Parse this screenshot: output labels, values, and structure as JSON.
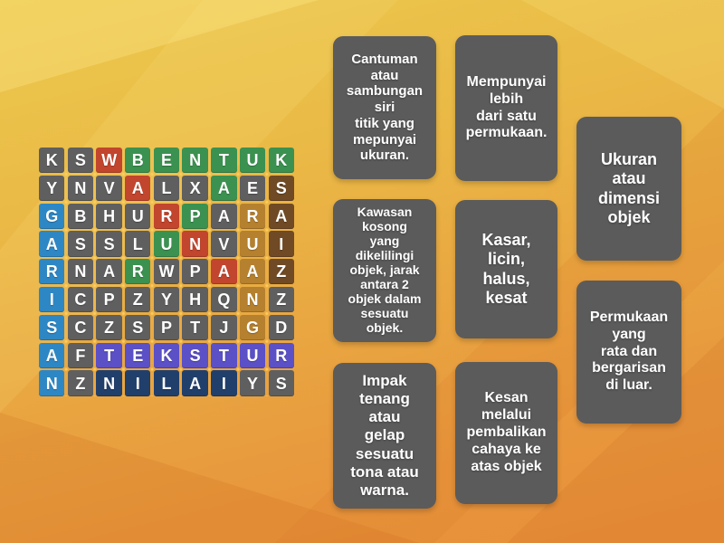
{
  "page": {
    "background": {
      "top_color": "#ecc94e",
      "bottom_color": "#e78e39"
    },
    "card_color": "#5b5b5b",
    "text_color": "#ffffff"
  },
  "grid": {
    "rows_count": 9,
    "cols_count": 9,
    "palette": {
      "gray": "#5f5f5f",
      "green": "#3b9150",
      "red": "#c2452d",
      "blue": "#2d87c5",
      "tan": "#b5812f",
      "brown": "#6f4a24",
      "purple": "#5b50c6",
      "navy": "#213f6b"
    },
    "rows": [
      {
        "letters": [
          "K",
          "S",
          "W",
          "B",
          "E",
          "N",
          "T",
          "U",
          "K"
        ],
        "colors": [
          "gray",
          "gray",
          "red",
          "green",
          "green",
          "green",
          "green",
          "green",
          "green"
        ]
      },
      {
        "letters": [
          "Y",
          "N",
          "V",
          "A",
          "L",
          "X",
          "A",
          "E",
          "S"
        ],
        "colors": [
          "gray",
          "gray",
          "gray",
          "red",
          "gray",
          "gray",
          "green",
          "gray",
          "brown"
        ]
      },
      {
        "letters": [
          "G",
          "B",
          "H",
          "U",
          "R",
          "P",
          "A",
          "R",
          "A"
        ],
        "colors": [
          "blue",
          "gray",
          "gray",
          "gray",
          "red",
          "green",
          "gray",
          "tan",
          "brown"
        ]
      },
      {
        "letters": [
          "A",
          "S",
          "S",
          "L",
          "U",
          "N",
          "V",
          "U",
          "I"
        ],
        "colors": [
          "blue",
          "gray",
          "gray",
          "gray",
          "green",
          "red",
          "gray",
          "tan",
          "brown"
        ]
      },
      {
        "letters": [
          "R",
          "N",
          "A",
          "R",
          "W",
          "P",
          "A",
          "A",
          "Z"
        ],
        "colors": [
          "blue",
          "gray",
          "gray",
          "green",
          "gray",
          "gray",
          "red",
          "tan",
          "brown"
        ]
      },
      {
        "letters": [
          "I",
          "C",
          "P",
          "Z",
          "Y",
          "H",
          "Q",
          "N",
          "Z"
        ],
        "colors": [
          "blue",
          "gray",
          "gray",
          "gray",
          "gray",
          "gray",
          "gray",
          "tan",
          "gray"
        ]
      },
      {
        "letters": [
          "S",
          "C",
          "Z",
          "S",
          "P",
          "T",
          "J",
          "G",
          "D"
        ],
        "colors": [
          "blue",
          "gray",
          "gray",
          "gray",
          "gray",
          "gray",
          "gray",
          "tan",
          "gray"
        ]
      },
      {
        "letters": [
          "A",
          "F",
          "T",
          "E",
          "K",
          "S",
          "T",
          "U",
          "R"
        ],
        "colors": [
          "blue",
          "gray",
          "purple",
          "purple",
          "purple",
          "purple",
          "purple",
          "purple",
          "purple"
        ]
      },
      {
        "letters": [
          "N",
          "Z",
          "N",
          "I",
          "L",
          "A",
          "I",
          "Y",
          "S"
        ],
        "colors": [
          "blue",
          "gray",
          "navy",
          "navy",
          "navy",
          "navy",
          "navy",
          "gray",
          "gray"
        ]
      }
    ],
    "highlighted_words": [
      {
        "word": "BENTUK",
        "color_key": "green"
      },
      {
        "word": "RUPA",
        "color_key": "green"
      },
      {
        "word": "WARNA",
        "color_key": "red"
      },
      {
        "word": "GARISAN",
        "color_key": "blue"
      },
      {
        "word": "RUANG",
        "color_key": "tan"
      },
      {
        "word": "SAIZ",
        "color_key": "brown"
      },
      {
        "word": "TEKSTUR",
        "color_key": "purple"
      },
      {
        "word": "NILAI",
        "color_key": "navy"
      }
    ]
  },
  "clues": [
    {
      "text": "Cantuman\natau\nsambungan\nsiri\ntitik yang\nmepunyai\nukuran."
    },
    {
      "text": "Mempunyai\nlebih\ndari satu\npermukaan."
    },
    {
      "text": "Ukuran\natau\ndimensi\nobjek"
    },
    {
      "text": "Kawasan\nkosong\nyang\ndikelilingi\nobjek, jarak\nantara 2\nobjek dalam\nsesuatu\nobjek."
    },
    {
      "text": "Kasar,\nlicin,\nhalus,\nkesat"
    },
    {
      "text": "Permukaan\nyang\nrata dan\nbergarisan\ndi luar."
    },
    {
      "text": "Impak\ntenang\natau\ngelap\nsesuatu\ntona atau\nwarna."
    },
    {
      "text": "Kesan\nmelalui\npembalikan\ncahaya ke\natas objek"
    }
  ]
}
